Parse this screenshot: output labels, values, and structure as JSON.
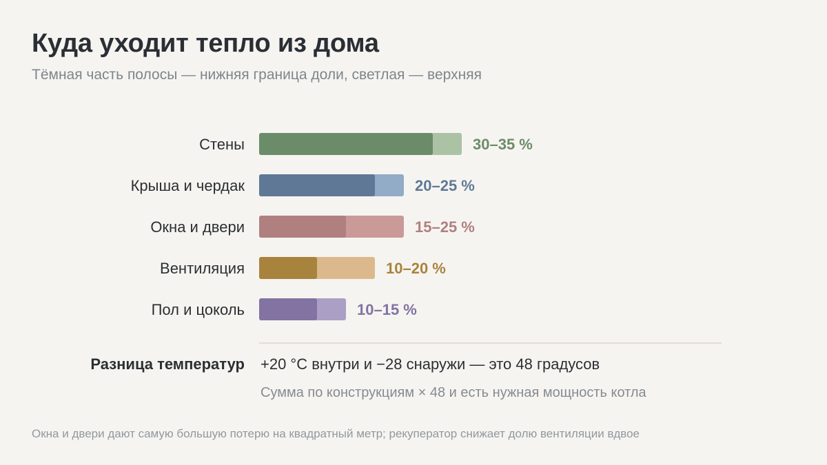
{
  "header": {
    "title": "Куда уходит тепло из дома",
    "subtitle": "Тёмная часть полосы — нижняя граница доли, светлая — верхняя"
  },
  "chart_data": {
    "type": "bar",
    "orientation": "horizontal",
    "categories": [
      "Стены",
      "Крыша и чердак",
      "Окна и двери",
      "Вентиляция",
      "Пол и цоколь"
    ],
    "lower": [
      30,
      20,
      15,
      10,
      10
    ],
    "upper": [
      35,
      25,
      25,
      20,
      15
    ],
    "value_labels": [
      "30–35 %",
      "20–25 %",
      "15–25 %",
      "10–20 %",
      "10–15 %"
    ],
    "colors": [
      {
        "dark": "#6b8c68",
        "light": "#abc3a4",
        "label": "#6b8c68"
      },
      {
        "dark": "#5e7896",
        "light": "#92abc6",
        "label": "#5e7896"
      },
      {
        "dark": "#b07f80",
        "light": "#c99a98",
        "label": "#b07f80"
      },
      {
        "dark": "#a8833e",
        "light": "#dcb98c",
        "label": "#a8833e"
      },
      {
        "dark": "#8273a3",
        "light": "#ab9fc5",
        "label": "#8273a3"
      }
    ],
    "xlim": [
      0,
      35
    ],
    "grid": false,
    "legend": "none"
  },
  "temperature": {
    "label": "Разница температур",
    "value": "+20 °C внутри и −28 снаружи — это 48 градусов",
    "note": "Сумма по конструкциям × 48 и есть нужная мощность котла"
  },
  "footnote": "Окна и двери дают самую большую потерю на квадратный метр; рекуператор снижает долю вентиляции вдвое"
}
